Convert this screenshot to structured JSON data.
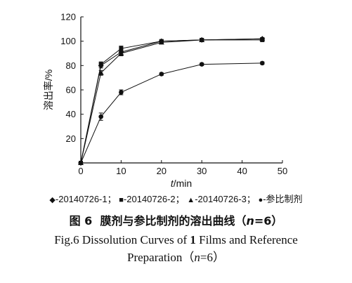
{
  "chart_data": {
    "type": "line",
    "ylabel": "溶出率/%",
    "xlabel_var": "t",
    "xlabel_unit": "/min",
    "xlim": [
      0,
      50
    ],
    "ylim": [
      0,
      120
    ],
    "xticks": [
      0,
      10,
      20,
      30,
      40,
      50
    ],
    "yticks": [
      0,
      20,
      40,
      60,
      80,
      100,
      120
    ],
    "grid": false,
    "legend_position": "bottom",
    "series": [
      {
        "name": "20140726-1",
        "marker": "diamond",
        "x": [
          0,
          5,
          10,
          20,
          30,
          45
        ],
        "y": [
          0,
          80,
          91,
          100,
          101,
          102
        ],
        "err": [
          0,
          2,
          2,
          1,
          1,
          1
        ]
      },
      {
        "name": "20140726-2",
        "marker": "square",
        "x": [
          0,
          5,
          10,
          20,
          30,
          45
        ],
        "y": [
          0,
          81,
          94,
          100,
          101,
          101
        ],
        "err": [
          0,
          2,
          2,
          1,
          1,
          1
        ]
      },
      {
        "name": "20140726-3",
        "marker": "triangle",
        "x": [
          0,
          5,
          10,
          20,
          30,
          45
        ],
        "y": [
          0,
          74,
          90,
          99,
          101,
          102
        ],
        "err": [
          0,
          2,
          2,
          1,
          1,
          1
        ]
      },
      {
        "name": "参比制剂",
        "marker": "circle",
        "x": [
          0,
          5,
          10,
          20,
          30,
          45
        ],
        "y": [
          0,
          38,
          58,
          73,
          81,
          82
        ],
        "err": [
          0,
          3,
          2,
          1,
          1,
          1
        ]
      }
    ]
  },
  "legend": {
    "item1": "-20140726-1",
    "item2": "-20140726-2",
    "item3": "-20140726-3",
    "item4": "-参比制剂",
    "sep": "；"
  },
  "caption": {
    "cn_prefix": "图 6",
    "cn_mid": "膜剂与参比制剂的溶出曲线（",
    "cn_n": "n",
    "cn_end": "=6）",
    "en_line1_a": "Fig.6   Dissolution Curves of ",
    "en_line1_b": "1",
    "en_line1_c": " Films and Reference",
    "en_line2_a": "Preparation（",
    "en_line2_n": "n",
    "en_line2_b": "=6）"
  }
}
